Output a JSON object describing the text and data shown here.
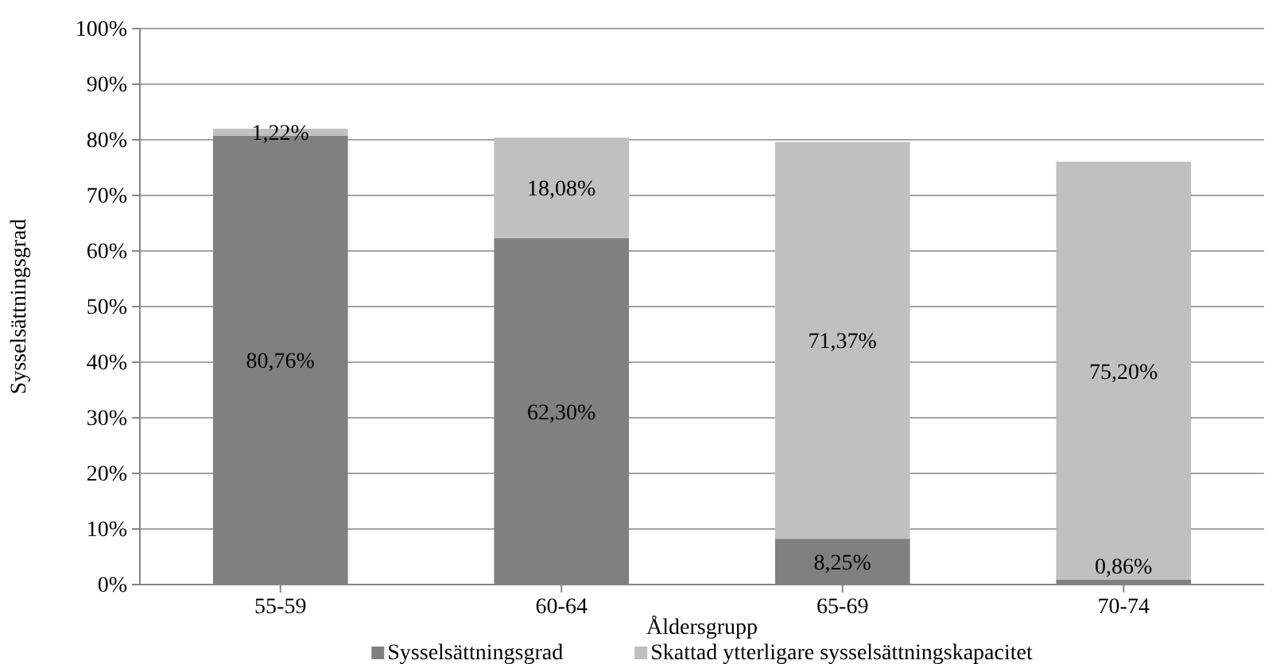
{
  "chart_data": {
    "type": "bar",
    "stacked": true,
    "xlabel": "Åldersgrupp",
    "ylabel": "Sysselsättningsgrad",
    "categories": [
      "55-59",
      "60-64",
      "65-69",
      "70-74"
    ],
    "series": [
      {
        "name": "Sysselsättningsgrad",
        "color": "#808080",
        "values": [
          80.76,
          62.3,
          8.25,
          0.86
        ],
        "value_labels": [
          "80,76%",
          "62,30%",
          "8,25%",
          "0,86%"
        ]
      },
      {
        "name": "Skattad ytterligare sysselsättningskapacitet",
        "color": "#c0c0c0",
        "values": [
          1.22,
          18.08,
          71.37,
          75.2
        ],
        "value_labels": [
          "1,22%",
          "18,08%",
          "71,37%",
          "75,20%"
        ]
      }
    ],
    "ylim": [
      0,
      100
    ],
    "yticks": [
      {
        "value": 0,
        "label": "0%"
      },
      {
        "value": 10,
        "label": "10%"
      },
      {
        "value": 20,
        "label": "20%"
      },
      {
        "value": 30,
        "label": "30%"
      },
      {
        "value": 40,
        "label": "40%"
      },
      {
        "value": 50,
        "label": "50%"
      },
      {
        "value": 60,
        "label": "60%"
      },
      {
        "value": 70,
        "label": "70%"
      },
      {
        "value": 80,
        "label": "80%"
      },
      {
        "value": 90,
        "label": "90%"
      },
      {
        "value": 100,
        "label": "100%"
      }
    ],
    "grid": "y",
    "legend": "bottom"
  }
}
